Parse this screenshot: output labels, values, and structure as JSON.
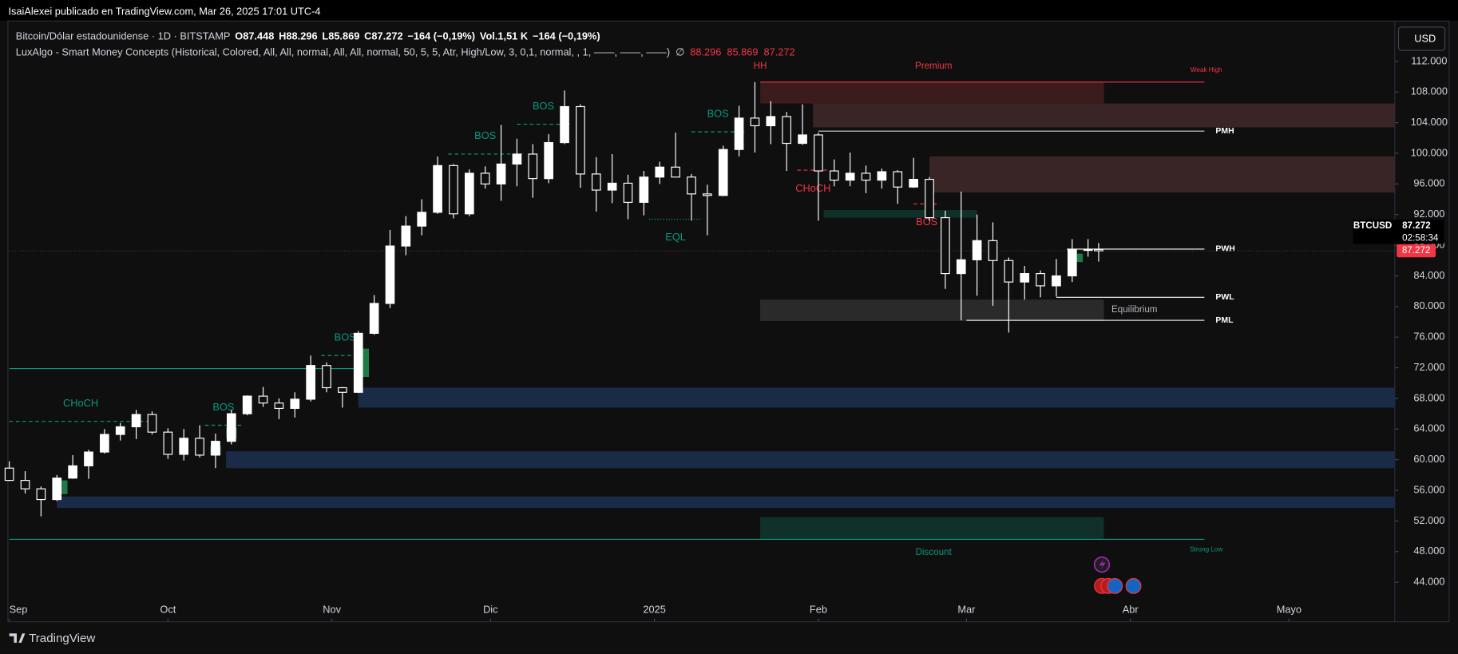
{
  "page": {
    "author_line": "IsaiAlexei publicado en TradingView.com, Mar 26, 2025 17:01 UTC-4",
    "legend_line1": [
      "Bitcoin/Dólar estadounidense · 1D · BITSTAMP",
      "O",
      "87.448",
      "H",
      "88.296",
      "L",
      "85.869",
      "C",
      "87.272",
      "−164 (−0,19%)",
      "Vol.",
      "1,51 K",
      "−164 (−0,19%)"
    ],
    "legend_line2": [
      "LuxAlgo - Smart Money Concepts (Historical, Colored, All, All, normal, All, All, normal, 50, 5, 5, Atr, High/Low, 3, 0,1, normal, , 1, ——, ——, ——)",
      "∅",
      "88.296",
      "85.869",
      "87.272"
    ],
    "currency_button": "USD",
    "footer": "TradingView"
  },
  "chart_data": {
    "type": "candlestick",
    "up_color": "#ffffff",
    "down_color": "#0f0f0f",
    "wick_color": "#ffffff",
    "x": [
      "2024-09-01",
      "2024-09-04",
      "2024-09-07",
      "2024-09-10",
      "2024-09-13",
      "2024-09-16",
      "2024-09-19",
      "2024-09-22",
      "2024-09-25",
      "2024-09-28",
      "2024-10-01",
      "2024-10-04",
      "2024-10-07",
      "2024-10-10",
      "2024-10-13",
      "2024-10-16",
      "2024-10-19",
      "2024-10-22",
      "2024-10-25",
      "2024-10-28",
      "2024-10-31",
      "2024-11-03",
      "2024-11-06",
      "2024-11-09",
      "2024-11-12",
      "2024-11-15",
      "2024-11-18",
      "2024-11-21",
      "2024-11-24",
      "2024-11-27",
      "2024-11-30",
      "2024-12-03",
      "2024-12-06",
      "2024-12-09",
      "2024-12-12",
      "2024-12-15",
      "2024-12-18",
      "2024-12-21",
      "2024-12-24",
      "2024-12-27",
      "2024-12-30",
      "2025-01-02",
      "2025-01-05",
      "2025-01-08",
      "2025-01-11",
      "2025-01-14",
      "2025-01-17",
      "2025-01-20",
      "2025-01-23",
      "2025-01-26",
      "2025-01-29",
      "2025-02-01",
      "2025-02-04",
      "2025-02-07",
      "2025-02-10",
      "2025-02-13",
      "2025-02-16",
      "2025-02-19",
      "2025-02-22",
      "2025-02-25",
      "2025-02-28",
      "2025-03-03",
      "2025-03-06",
      "2025-03-09",
      "2025-03-12",
      "2025-03-15",
      "2025-03-18",
      "2025-03-21",
      "2025-03-24",
      "2025-03-26"
    ],
    "open": [
      58900,
      57300,
      56200,
      54800,
      57600,
      59200,
      61000,
      63300,
      64300,
      65900,
      63600,
      60700,
      62800,
      60600,
      62400,
      66000,
      68300,
      67400,
      66700,
      67900,
      72300,
      69400,
      68800,
      76500,
      80400,
      87900,
      90500,
      92300,
      98400,
      92100,
      97400,
      96000,
      98600,
      99900,
      96700,
      101400,
      106100,
      97300,
      95200,
      96100,
      93600,
      96900,
      98200,
      96900,
      94700,
      94500,
      100500,
      104600,
      103600,
      104800,
      101300,
      102400,
      97700,
      96500,
      97400,
      96500,
      97600,
      95600,
      96600,
      91600,
      84300,
      86100,
      88600,
      86000,
      83200,
      84300,
      82700,
      84000,
      87400,
      87448
    ],
    "high": [
      59800,
      58500,
      56500,
      58000,
      60600,
      61300,
      64000,
      64800,
      66500,
      66300,
      64100,
      64000,
      64500,
      63400,
      66500,
      68400,
      69500,
      68000,
      68800,
      73600,
      72700,
      69500,
      76800,
      81500,
      90000,
      91800,
      94000,
      99600,
      98600,
      97900,
      98300,
      103700,
      101900,
      101200,
      102500,
      108200,
      106400,
      99500,
      99900,
      97200,
      97700,
      98900,
      102700,
      97300,
      95900,
      101000,
      106200,
      109300,
      106800,
      105400,
      106400,
      102700,
      99200,
      100100,
      98400,
      98000,
      97800,
      99400,
      96900,
      92500,
      95000,
      92000,
      91000,
      86400,
      85300,
      84700,
      86200,
      88800,
      88800,
      88296
    ],
    "low": [
      57200,
      55600,
      52600,
      54600,
      57500,
      57500,
      60800,
      62500,
      62700,
      63300,
      60100,
      59900,
      60300,
      58900,
      62000,
      65800,
      66900,
      65300,
      65500,
      67600,
      68800,
      66800,
      68700,
      76300,
      79800,
      86700,
      89300,
      92100,
      91500,
      91800,
      95400,
      93800,
      95700,
      94200,
      96100,
      101200,
      95500,
      92400,
      93500,
      91400,
      91900,
      96000,
      96900,
      91200,
      89300,
      94400,
      99600,
      100100,
      101200,
      97700,
      101100,
      91200,
      95700,
      95700,
      94800,
      95400,
      93400,
      95500,
      91200,
      82300,
      78200,
      81400,
      80100,
      76600,
      80900,
      81200,
      81300,
      83200,
      86500,
      85869
    ],
    "close": [
      57300,
      56200,
      54800,
      57600,
      59200,
      61000,
      63300,
      64300,
      65900,
      63600,
      60700,
      62800,
      60600,
      62400,
      66000,
      68300,
      67400,
      66700,
      67900,
      72300,
      69400,
      68800,
      76500,
      80400,
      87900,
      90500,
      92300,
      98400,
      92100,
      97400,
      96000,
      98600,
      99900,
      96700,
      101400,
      106100,
      97300,
      95200,
      96100,
      93600,
      96900,
      98200,
      96900,
      94700,
      94500,
      100500,
      104600,
      103600,
      104800,
      101300,
      102400,
      97700,
      96500,
      97400,
      96500,
      97600,
      95600,
      96600,
      91600,
      84300,
      86100,
      88600,
      86000,
      83200,
      84300,
      82700,
      84000,
      87400,
      87448,
      87272
    ],
    "xlim": [
      "2024-09-01",
      "2025-05-21"
    ],
    "xticks": [
      {
        "value": "2024-09-01",
        "label": "Sep"
      },
      {
        "value": "2024-10-01",
        "label": "Oct"
      },
      {
        "value": "2024-11-01",
        "label": "Nov"
      },
      {
        "value": "2024-12-01",
        "label": "Dic"
      },
      {
        "value": "2025-01-01",
        "label": "2025"
      },
      {
        "value": "2025-02-01",
        "label": "Feb"
      },
      {
        "value": "2025-03-01",
        "label": "Mar"
      },
      {
        "value": "2025-04-01",
        "label": "Abr"
      },
      {
        "value": "2025-05-01",
        "label": "Mayo"
      }
    ],
    "ylim": [
      38900,
      116600
    ],
    "yticks": [
      {
        "value": 44000,
        "label": "44.000"
      },
      {
        "value": 48000,
        "label": "48.000"
      },
      {
        "value": 52000,
        "label": "52.000"
      },
      {
        "value": 56000,
        "label": "56.000"
      },
      {
        "value": 60000,
        "label": "60.000"
      },
      {
        "value": 64000,
        "label": "64.000"
      },
      {
        "value": 68000,
        "label": "68.000"
      },
      {
        "value": 72000,
        "label": "72.000"
      },
      {
        "value": 76000,
        "label": "76.000"
      },
      {
        "value": 80000,
        "label": "80.000"
      },
      {
        "value": 84000,
        "label": "84.000"
      },
      {
        "value": 88000,
        "label": "88.000"
      },
      {
        "value": 92000,
        "label": "92.000"
      },
      {
        "value": 96000,
        "label": "96.000"
      },
      {
        "value": 100000,
        "label": "100.000"
      },
      {
        "value": 104000,
        "label": "104.000"
      },
      {
        "value": 108000,
        "label": "108.000"
      },
      {
        "value": 112000,
        "label": "112.000"
      }
    ],
    "last_price": {
      "value": 87272,
      "label": "87.272"
    },
    "scale_legend": {
      "symbol": "BTCUSD",
      "price": "87.272",
      "countdown": "02:58:34"
    },
    "zones": [
      {
        "label": "Premium",
        "top": 109300,
        "bottom": 106500,
        "from": "2025-01-21",
        "to": "2025-03-27",
        "color": "#3c1b1d"
      },
      {
        "top": 106500,
        "bottom": 103400,
        "from": "2025-01-31",
        "to": "2025-05-21",
        "color": "#3a2526"
      },
      {
        "top": 99600,
        "bottom": 94900,
        "from": "2025-02-22",
        "to": "2025-05-21",
        "color": "#3a2526"
      },
      {
        "top": 92600,
        "bottom": 91600,
        "from": "2025-02-02",
        "to": "2025-03-03",
        "color": "#10302a"
      },
      {
        "label": "Equilibrium",
        "top": 80900,
        "bottom": 78100,
        "from": "2025-01-21",
        "to": "2025-03-27",
        "color": "#2a2a2a"
      },
      {
        "top": 69400,
        "bottom": 66800,
        "from": "2024-11-06",
        "to": "2025-05-21",
        "color": "#1a2b48"
      },
      {
        "top": 61100,
        "bottom": 58900,
        "from": "2024-10-12",
        "to": "2025-05-21",
        "color": "#1a2b48"
      },
      {
        "top": 55200,
        "bottom": 53700,
        "from": "2024-09-10",
        "to": "2025-05-21",
        "color": "#1a2b48"
      },
      {
        "label": "Discount",
        "top": 52500,
        "bottom": 49600,
        "from": "2025-01-21",
        "to": "2025-03-27",
        "color": "#10302a"
      },
      {
        "top": 74500,
        "bottom": 70800,
        "from": "2024-11-06",
        "to": "2024-11-08",
        "color": "#1f7a45"
      },
      {
        "top": 64200,
        "bottom": 62800,
        "from": "2024-10-12",
        "to": "2024-10-14",
        "color": "#1f7a45"
      },
      {
        "top": 61800,
        "bottom": 60600,
        "from": "2024-10-09",
        "to": "2024-10-11",
        "color": "#1f7a45"
      },
      {
        "top": 57300,
        "bottom": 55500,
        "from": "2024-09-10",
        "to": "2024-09-12",
        "color": "#1f7a45"
      },
      {
        "top": 86900,
        "bottom": 85800,
        "from": "2025-03-21",
        "to": "2025-03-23",
        "color": "#1f7a45"
      }
    ],
    "levels": [
      {
        "label": "Weak High",
        "price": 109300,
        "from": "2025-01-21",
        "to": "2025-04-15",
        "color": "#f23645"
      },
      {
        "label": "PMH",
        "price": 102900,
        "from": "2025-02-01",
        "to": "2025-04-15",
        "color": "#d9d9d9"
      },
      {
        "label": "PWH",
        "price": 87500,
        "from": "2025-03-20",
        "to": "2025-04-15",
        "color": "#ffffff"
      },
      {
        "label": "PWL",
        "price": 81200,
        "from": "2025-03-18",
        "to": "2025-04-15",
        "color": "#ffffff"
      },
      {
        "label": "PML",
        "price": 78200,
        "from": "2025-03-01",
        "to": "2025-04-15",
        "color": "#d9d9d9"
      },
      {
        "label": "Strong Low",
        "price": 49600,
        "from": "2024-09-01",
        "to": "2025-04-15",
        "color": "#089981"
      },
      {
        "price": 71900,
        "from": "2024-09-01",
        "to": "2024-11-06",
        "color": "#089981"
      }
    ],
    "structures": [
      {
        "label": "CHoCH",
        "price": 65000,
        "from": "2024-09-01",
        "to": "2024-09-28",
        "color": "#089981"
      },
      {
        "label": "BOS",
        "price": 64500,
        "from": "2024-10-08",
        "to": "2024-10-15",
        "color": "#089981"
      },
      {
        "label": "BOS",
        "price": 73600,
        "from": "2024-10-30",
        "to": "2024-11-08",
        "color": "#089981"
      },
      {
        "label": "BOS",
        "price": 99900,
        "from": "2024-11-23",
        "to": "2024-12-07",
        "color": "#089981"
      },
      {
        "label": "BOS",
        "price": 103800,
        "from": "2024-12-06",
        "to": "2024-12-16",
        "color": "#089981"
      },
      {
        "label": "BOS",
        "price": 102800,
        "from": "2025-01-08",
        "to": "2025-01-18",
        "color": "#089981"
      },
      {
        "label": "EQL",
        "price": 91400,
        "from": "2024-12-31",
        "to": "2025-01-10",
        "color": "#089981"
      },
      {
        "label": "CHoCH",
        "price": 97800,
        "from": "2025-01-28",
        "to": "2025-02-03",
        "color": "#f23645"
      },
      {
        "label": "BOS",
        "price": 93400,
        "from": "2025-02-19",
        "to": "2025-02-24",
        "color": "#f23645"
      }
    ],
    "annotations": [
      {
        "label": "HH",
        "price": 109300,
        "at": "2025-01-21",
        "color": "#f23645"
      }
    ]
  }
}
